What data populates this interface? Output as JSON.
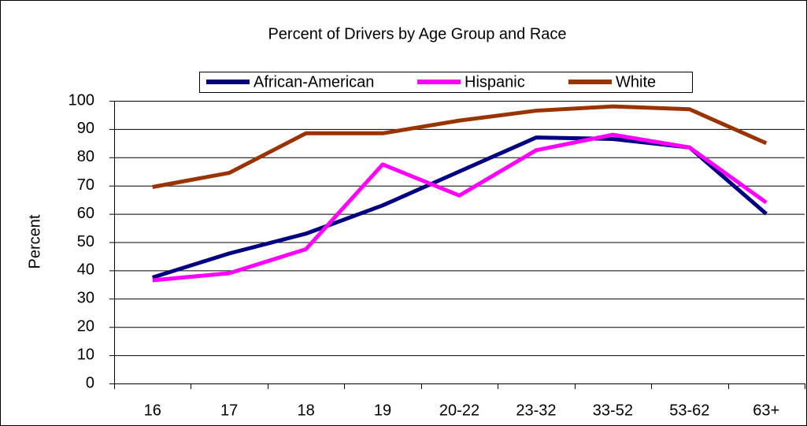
{
  "chart_data": {
    "type": "line",
    "title": "Percent of Drivers by Age Group and Race",
    "y_label": "Percent",
    "categories": [
      "16",
      "17",
      "18",
      "19",
      "20-22",
      "23-32",
      "33-52",
      "53-62",
      "63+"
    ],
    "series": [
      {
        "name": "African-American",
        "color": "#000080",
        "values": [
          37.5,
          46,
          53,
          63,
          75,
          87,
          86.5,
          83.5,
          60
        ]
      },
      {
        "name": "Hispanic",
        "color": "#ff00ff",
        "values": [
          36.5,
          39,
          47.5,
          77.5,
          66.5,
          82.5,
          88,
          83.5,
          64
        ]
      },
      {
        "name": "White",
        "color": "#993300",
        "values": [
          69.5,
          74.5,
          88.5,
          88.5,
          93,
          96.5,
          98,
          97,
          85
        ]
      }
    ],
    "ylim": [
      0,
      100
    ],
    "yticks": [
      0,
      10,
      20,
      30,
      40,
      50,
      60,
      70,
      80,
      90,
      100
    ],
    "grid": true
  }
}
